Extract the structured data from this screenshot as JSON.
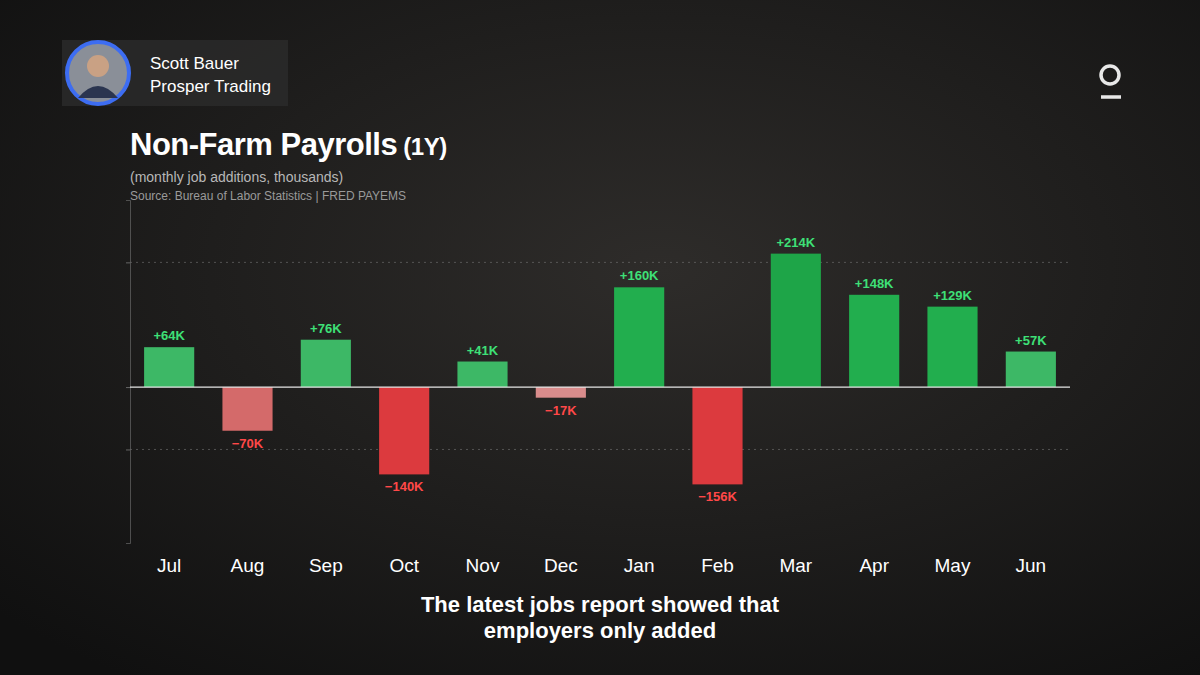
{
  "speaker": {
    "name": "Scott Bauer",
    "affiliation": "Prosper Trading"
  },
  "caption": "The latest jobs report showed that employers only added",
  "chart_data": {
    "type": "bar",
    "title": "Non-Farm Payrolls (1Y)",
    "subtitle": "(monthly job additions, thousands)",
    "source": "Source: Bureau of Labor Statistics | FRED PAYEMS",
    "categories": [
      "Jul",
      "Aug",
      "Sep",
      "Oct",
      "Nov",
      "Dec",
      "Jan",
      "Feb",
      "Mar",
      "Apr",
      "May",
      "Jun"
    ],
    "values": [
      64,
      -70,
      76,
      -140,
      41,
      -17,
      160,
      -156,
      214,
      148,
      129,
      57
    ],
    "value_labels": [
      "+64K",
      "−70K",
      "+76K",
      "−140K",
      "+41K",
      "−17K",
      "+160K",
      "−156K",
      "+214K",
      "+148K",
      "+129K",
      "+57K"
    ],
    "colors": [
      "#3db866",
      "#d46a6a",
      "#3db866",
      "#dc3a3e",
      "#3db866",
      "#d98c8c",
      "#22ae4e",
      "#dc3a3e",
      "#1ea548",
      "#22ae4e",
      "#22ae4e",
      "#3db866"
    ],
    "ylim": [
      -250,
      300
    ],
    "yticks": [
      -100,
      0,
      200
    ],
    "grid": true,
    "data_labels": true,
    "tick_labels": "x"
  }
}
